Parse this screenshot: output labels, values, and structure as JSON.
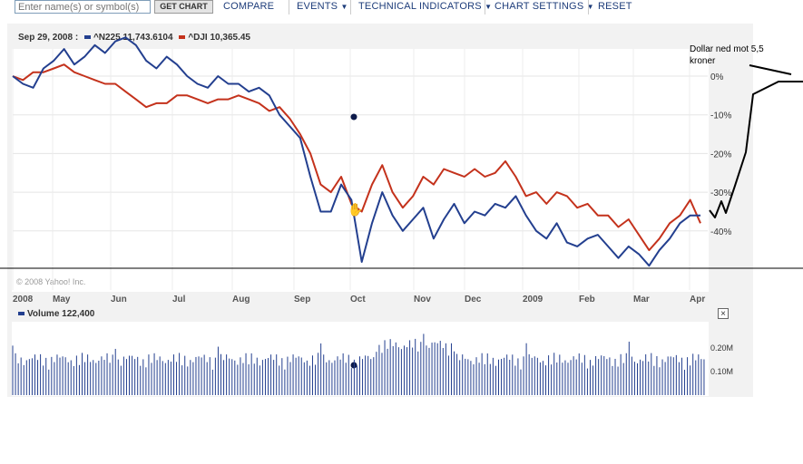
{
  "toolbar": {
    "search_placeholder": "Enter name(s) or symbol(s)",
    "get_chart": "GET CHART",
    "compare": "COMPARE",
    "events": "EVENTS",
    "technical_indicators": "TECHNICAL INDICATORS",
    "chart_settings": "CHART SETTINGS",
    "reset": "RESET"
  },
  "legend": {
    "date": "Sep 29, 2008 :",
    "series1_name": "^N225",
    "series1_value": "11,743.6104",
    "series2_name": "^DJI",
    "series2_value": "10,365.45"
  },
  "copyright": "© 2008 Yahoo! Inc.",
  "volume": {
    "label": "Volume",
    "value": "122,400",
    "ticks": [
      "0.20M",
      "0.10M"
    ]
  },
  "annotation": {
    "text": "Dollar ned mot 5,5 kroner"
  },
  "colors": {
    "n225": "#233f8f",
    "dji": "#c4321c"
  },
  "chart_data": {
    "type": "line",
    "x_labels": [
      "2008",
      "May",
      "Jun",
      "Jul",
      "Aug",
      "Sep",
      "Oct",
      "Nov",
      "Dec",
      "2009",
      "Feb",
      "Mar",
      "Apr"
    ],
    "y_ticks": [
      "0%",
      "-10%",
      "-20%",
      "-30%",
      "-40%"
    ],
    "ylim": [
      -50,
      5
    ],
    "series": [
      {
        "name": "^N225",
        "color": "#233f8f",
        "values": [
          0,
          -2,
          -3,
          2,
          4,
          7,
          3,
          5,
          8,
          6,
          9,
          10,
          8,
          4,
          2,
          5,
          3,
          0,
          -2,
          -3,
          0,
          -2,
          -2,
          -4,
          -3,
          -5,
          -10,
          -13,
          -16,
          -26,
          -35,
          -35,
          -28,
          -32,
          -48,
          -38,
          -30,
          -36,
          -40,
          -37,
          -34,
          -42,
          -37,
          -33,
          -38,
          -35,
          -36,
          -33,
          -34,
          -31,
          -36,
          -40,
          -42,
          -38,
          -43,
          -44,
          -42,
          -41,
          -44,
          -47,
          -44,
          -46,
          -49,
          -45,
          -42,
          -38,
          -36,
          -36
        ]
      },
      {
        "name": "^DJI",
        "color": "#c4321c",
        "values": [
          0,
          -1,
          1,
          1,
          2,
          3,
          1,
          0,
          -1,
          -2,
          -2,
          -4,
          -6,
          -8,
          -7,
          -7,
          -5,
          -5,
          -6,
          -7,
          -6,
          -6,
          -5,
          -6,
          -7,
          -9,
          -8,
          -11,
          -15,
          -20,
          -28,
          -30,
          -26,
          -33,
          -35,
          -28,
          -23,
          -30,
          -34,
          -31,
          -26,
          -28,
          -24,
          -25,
          -26,
          -24,
          -26,
          -25,
          -22,
          -26,
          -31,
          -30,
          -33,
          -30,
          -31,
          -34,
          -33,
          -36,
          -36,
          -39,
          -37,
          -41,
          -45,
          -42,
          -38,
          -36,
          -32,
          -38
        ]
      }
    ],
    "marker_date": "Sep 29, 2008"
  }
}
